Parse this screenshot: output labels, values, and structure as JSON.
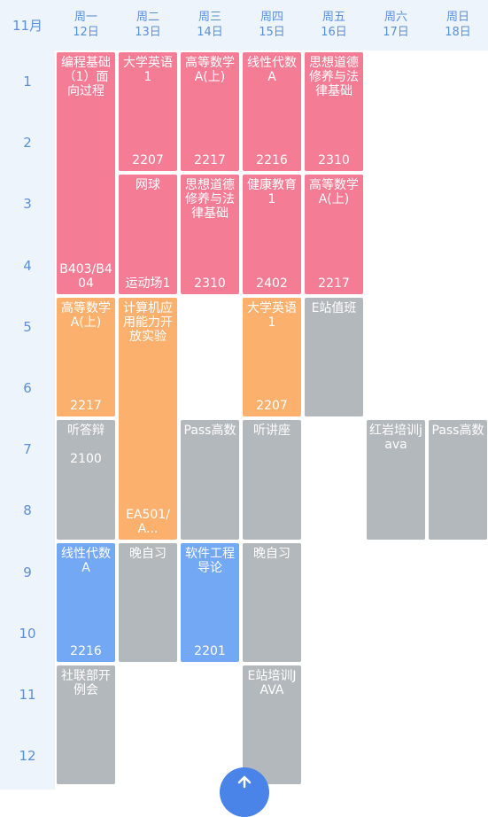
{
  "header": {
    "month": "11月",
    "days": [
      {
        "week": "周一",
        "date": "12日"
      },
      {
        "week": "周二",
        "date": "13日"
      },
      {
        "week": "周三",
        "date": "14日"
      },
      {
        "week": "周四",
        "date": "15日"
      },
      {
        "week": "周五",
        "date": "16日"
      },
      {
        "week": "周六",
        "date": "17日"
      },
      {
        "week": "周日",
        "date": "18日"
      }
    ]
  },
  "periods": [
    "1",
    "2",
    "3",
    "4",
    "5",
    "6",
    "7",
    "8",
    "9",
    "10",
    "11",
    "12"
  ],
  "colors": {
    "pink": "#f47c95",
    "orange": "#fbb06e",
    "gray": "#b3b8bd",
    "blue": "#73a8f5",
    "accent": "#5b8fd6"
  },
  "courses": [
    {
      "day": 1,
      "start": 1,
      "span": 4,
      "color": "pink",
      "title": "编程基础（1）面向过程",
      "room": "B403/B404"
    },
    {
      "day": 1,
      "start": 5,
      "span": 2,
      "color": "orange",
      "title": "高等数学A(上)",
      "room": "2217"
    },
    {
      "day": 1,
      "start": 7,
      "span": 2,
      "color": "gray",
      "title": "听答辩",
      "room": "2100",
      "room_mid": true
    },
    {
      "day": 1,
      "start": 9,
      "span": 2,
      "color": "blue",
      "title": "线性代数A",
      "room": "2216"
    },
    {
      "day": 1,
      "start": 11,
      "span": 2,
      "color": "gray",
      "title": "社联部开例会",
      "room": ""
    },
    {
      "day": 2,
      "start": 1,
      "span": 2,
      "color": "pink",
      "title": "大学英语1",
      "room": "2207"
    },
    {
      "day": 2,
      "start": 3,
      "span": 2,
      "color": "pink",
      "title": "网球",
      "room": "运动场1"
    },
    {
      "day": 2,
      "start": 5,
      "span": 4,
      "color": "orange",
      "title": "计算机应用能力开放实验",
      "room": "EA501/A..."
    },
    {
      "day": 2,
      "start": 9,
      "span": 2,
      "color": "gray",
      "title": "晚自习",
      "room": ""
    },
    {
      "day": 3,
      "start": 1,
      "span": 2,
      "color": "pink",
      "title": "高等数学A(上)",
      "room": "2217"
    },
    {
      "day": 3,
      "start": 3,
      "span": 2,
      "color": "pink",
      "title": "思想道德修养与法律基础",
      "room": "2310"
    },
    {
      "day": 3,
      "start": 7,
      "span": 2,
      "color": "gray",
      "title": "Pass高数",
      "room": ""
    },
    {
      "day": 3,
      "start": 9,
      "span": 2,
      "color": "blue",
      "title": "软件工程导论",
      "room": "2201"
    },
    {
      "day": 4,
      "start": 1,
      "span": 2,
      "color": "pink",
      "title": "线性代数A",
      "room": "2216"
    },
    {
      "day": 4,
      "start": 3,
      "span": 2,
      "color": "pink",
      "title": "健康教育1",
      "room": "2402"
    },
    {
      "day": 4,
      "start": 5,
      "span": 2,
      "color": "orange",
      "title": "大学英语1",
      "room": "2207"
    },
    {
      "day": 4,
      "start": 7,
      "span": 2,
      "color": "gray",
      "title": "听讲座",
      "room": ""
    },
    {
      "day": 4,
      "start": 9,
      "span": 2,
      "color": "gray",
      "title": "晚自习",
      "room": ""
    },
    {
      "day": 4,
      "start": 11,
      "span": 2,
      "color": "gray",
      "title": "E站培训JAVA",
      "room": ""
    },
    {
      "day": 5,
      "start": 1,
      "span": 2,
      "color": "pink",
      "title": "思想道德修养与法律基础",
      "room": "2310"
    },
    {
      "day": 5,
      "start": 3,
      "span": 2,
      "color": "pink",
      "title": "高等数学A(上)",
      "room": "2217"
    },
    {
      "day": 5,
      "start": 5,
      "span": 2,
      "color": "gray",
      "title": "E站值班",
      "room": ""
    },
    {
      "day": 6,
      "start": 7,
      "span": 2,
      "color": "gray",
      "title": "红岩培训java",
      "room": ""
    },
    {
      "day": 7,
      "start": 7,
      "span": 2,
      "color": "gray",
      "title": "Pass高数",
      "room": ""
    }
  ]
}
